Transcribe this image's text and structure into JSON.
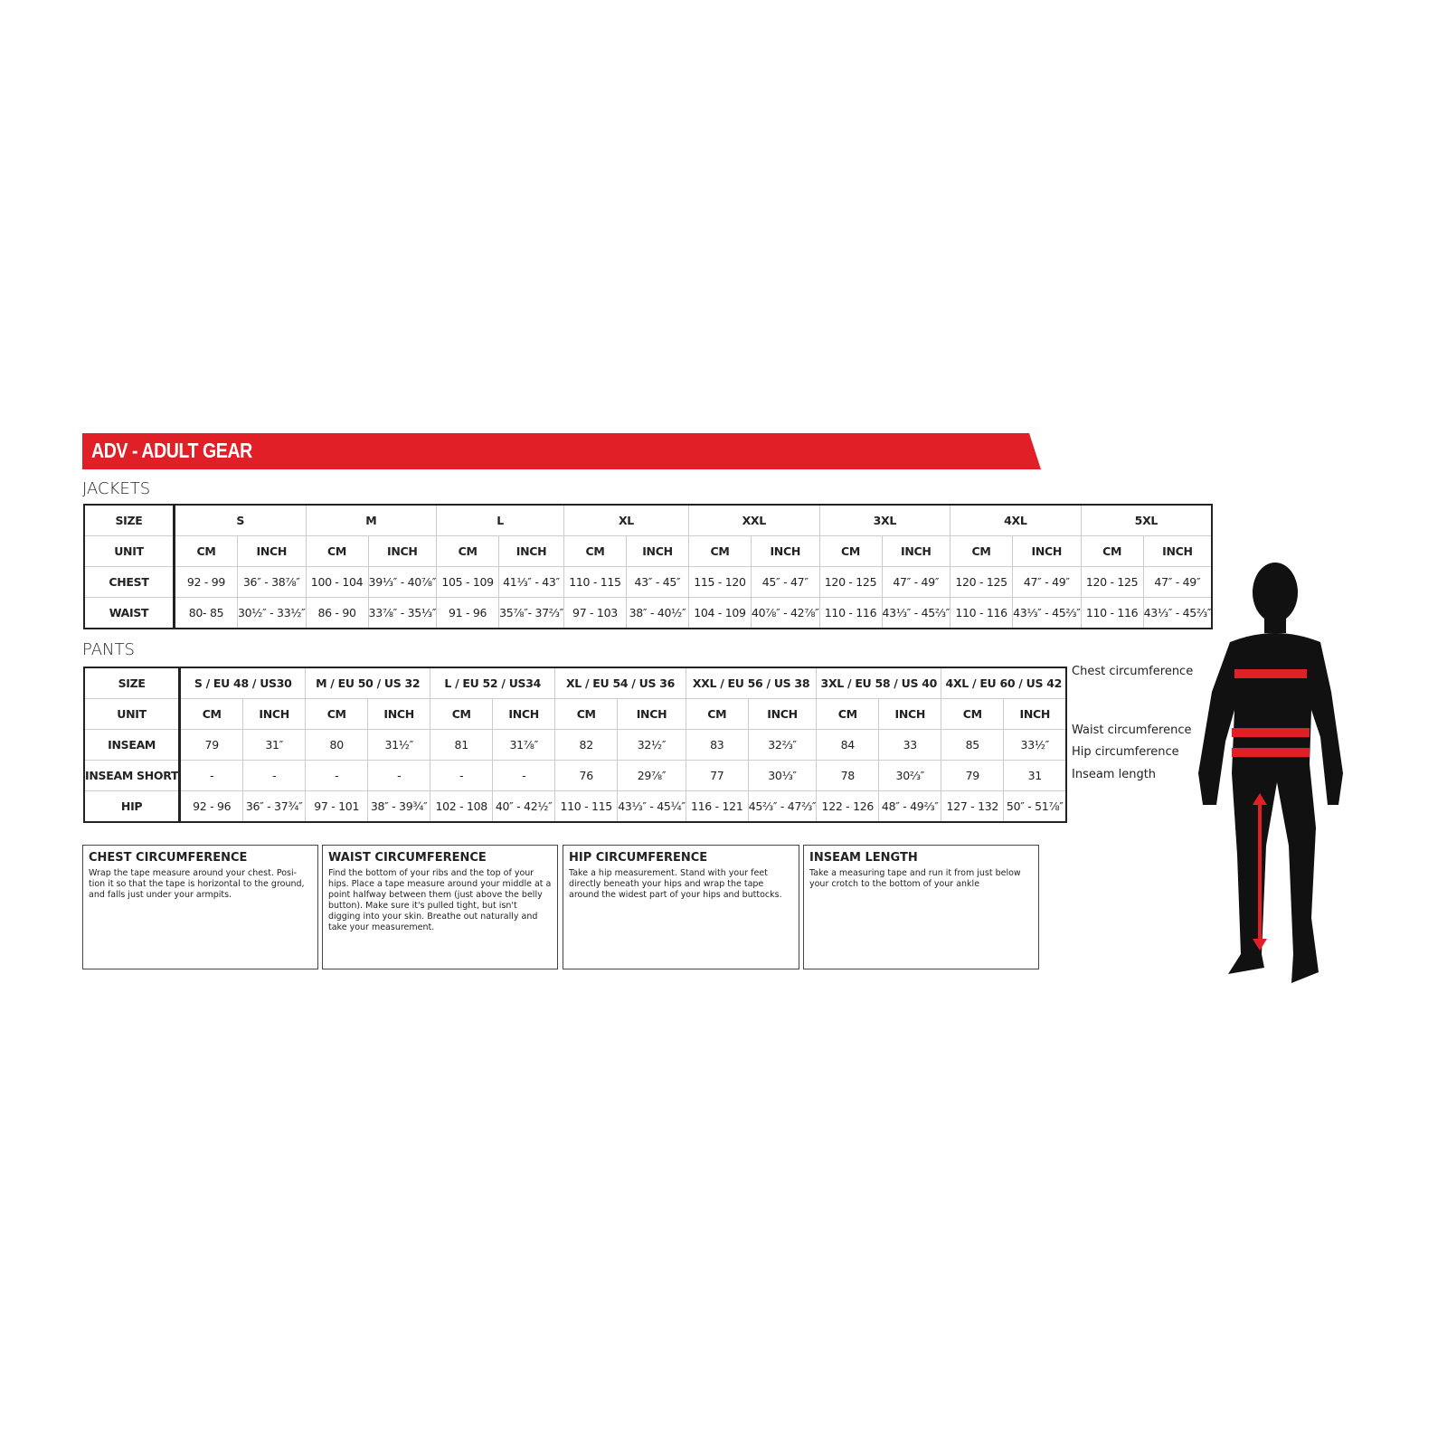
{
  "banner_title": "ADV - ADULT GEAR",
  "jackets": {
    "title": "JACKETS",
    "size_label": "SIZE",
    "sizes": [
      "S",
      "M",
      "L",
      "XL",
      "XXL",
      "3XL",
      "4XL",
      "5XL"
    ],
    "unit_label": "UNIT",
    "units": [
      "CM",
      "INCH"
    ],
    "rows": [
      {
        "label": "CHEST",
        "values": [
          "92 - 99",
          "36″ - 38⅞″",
          "100 - 104",
          "39⅓″ - 40⅞″",
          "105 - 109",
          "41⅓″ - 43″",
          "110 - 115",
          "43″ - 45″",
          "115 - 120",
          "45″ - 47″",
          "120 - 125",
          "47″ - 49″",
          "120 - 125",
          "47″ - 49″",
          "120 - 125",
          "47″ - 49″"
        ]
      },
      {
        "label": "WAIST",
        "values": [
          "80- 85",
          "30½″ - 33½″",
          "86 - 90",
          "33⅞″ - 35⅓″",
          "91 - 96",
          "35⅞″- 37⅔″",
          "97 - 103",
          "38″ - 40½″",
          "104 - 109",
          "40⅞″ - 42⅞″",
          "110 - 116",
          "43⅓″ - 45⅔″",
          "110 - 116",
          "43⅓″ - 45⅔″",
          "110 - 116",
          "43⅓″ - 45⅔″"
        ]
      }
    ]
  },
  "pants": {
    "title": "PANTS",
    "size_label": "SIZE",
    "sizes": [
      "S / EU 48 / US30",
      "M / EU 50 / US 32",
      "L / EU 52 / US34",
      "XL / EU 54 / US 36",
      "XXL / EU 56 / US 38",
      "3XL / EU 58 / US 40",
      "4XL / EU 60 / US 42"
    ],
    "unit_label": "UNIT",
    "units": [
      "CM",
      "INCH"
    ],
    "rows": [
      {
        "label": "INSEAM",
        "values": [
          "79",
          "31″",
          "80",
          "31½″",
          "81",
          "31⅞″",
          "82",
          "32½″",
          "83",
          "32⅔″",
          "84",
          "33",
          "85",
          "33½″"
        ]
      },
      {
        "label": "INSEAM SHORT",
        "values": [
          "-",
          "-",
          "-",
          "-",
          "-",
          "-",
          "76",
          "29⅞″",
          "77",
          "30⅓″",
          "78",
          "30⅔″",
          "79",
          "31"
        ]
      },
      {
        "label": "HIP",
        "values": [
          "92 - 96",
          "36″ - 37¾″",
          "97 - 101",
          "38″ - 39¾″",
          "102 - 108",
          "40″ - 42½″",
          "110 - 115",
          "43⅓″ - 45¼″",
          "116 - 121",
          "45⅔″ - 47⅔″",
          "122 - 126",
          "48″ - 49⅔″",
          "127 - 132",
          "50″ - 51⅞″"
        ]
      }
    ]
  },
  "guides": [
    {
      "title": "CHEST CIRCUMFERENCE",
      "text": "Wrap the tape measure around your chest. Posi-tion it so that the tape is horizontal to the ground, and falls just under your armpits."
    },
    {
      "title": "WAIST CIRCUMFERENCE",
      "text": "Find the bottom of your ribs and the top of your hips. Place a tape measure around your middle at a point halfway between them (just above the belly button). Make sure it's pulled tight, but isn't digging into your skin. Breathe out naturally and take your measurement."
    },
    {
      "title": "HIP CIRCUMFERENCE",
      "text": "Take a hip measurement. Stand with your feet directly beneath your hips and wrap the tape around the widest part of your hips and buttocks."
    },
    {
      "title": "INSEAM LENGTH",
      "text": "Take a measuring tape and run it from just below your crotch to the bottom of your ankle"
    }
  ],
  "figure_labels": {
    "chest": "Chest circumference",
    "waist": "Waist circumference",
    "hip": "Hip circumference",
    "inseam": "Inseam length"
  },
  "colors": {
    "brand_red": "#e01f26",
    "silhouette": "#111111"
  }
}
